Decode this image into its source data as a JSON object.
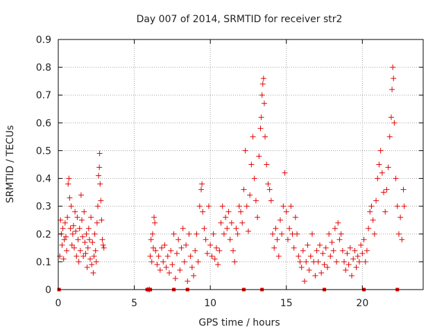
{
  "chart_data": {
    "type": "scatter",
    "title": "Day 007 of 2014, SRMTID for receiver str2",
    "xlabel": "GPS time / hours",
    "ylabel": "SRMTID / TECUs",
    "xlim": [
      0,
      24
    ],
    "ylim": [
      0,
      0.9
    ],
    "xticks": [
      0,
      5,
      10,
      15,
      20
    ],
    "xtick_labels": [
      "0",
      "5",
      "10",
      "15",
      "20"
    ],
    "yticks": [
      0,
      0.1,
      0.2,
      0.3,
      0.4,
      0.5,
      0.6,
      0.7,
      0.8,
      0.9
    ],
    "ytick_labels": [
      "0",
      "0.1",
      "0.2",
      "0.3",
      "0.4",
      "0.5",
      "0.6",
      "0.7",
      "0.8",
      "0.9"
    ],
    "grid": true,
    "marker": "+",
    "color": "#e00000",
    "series": [
      {
        "name": "SRMTID",
        "points": [
          [
            0.1,
            0.12
          ],
          [
            0.15,
            0.25
          ],
          [
            0.2,
            0.2
          ],
          [
            0.25,
            0.16
          ],
          [
            0.3,
            0.22
          ],
          [
            0.35,
            0.11
          ],
          [
            0.4,
            0.18
          ],
          [
            0.45,
            0.24
          ],
          [
            0.5,
            0.19
          ],
          [
            0.55,
            0.14
          ],
          [
            0.6,
            0.26
          ],
          [
            0.65,
            0.38
          ],
          [
            0.7,
            0.4
          ],
          [
            0.75,
            0.33
          ],
          [
            0.8,
            0.22
          ],
          [
            0.85,
            0.3
          ],
          [
            0.9,
            0.16
          ],
          [
            0.95,
            0.2
          ],
          [
            1.0,
            0.23
          ],
          [
            1.05,
            0.15
          ],
          [
            1.1,
            0.28
          ],
          [
            1.15,
            0.21
          ],
          [
            1.2,
            0.12
          ],
          [
            1.25,
            0.26
          ],
          [
            1.3,
            0.18
          ],
          [
            1.35,
            0.1
          ],
          [
            1.4,
            0.22
          ],
          [
            1.45,
            0.14
          ],
          [
            1.5,
            0.34
          ],
          [
            1.55,
            0.25
          ],
          [
            1.6,
            0.19
          ],
          [
            1.65,
            0.12
          ],
          [
            1.7,
            0.28
          ],
          [
            1.75,
            0.17
          ],
          [
            1.8,
            0.13
          ],
          [
            1.85,
            0.2
          ],
          [
            1.9,
            0.08
          ],
          [
            1.95,
            0.15
          ],
          [
            2.0,
            0.22
          ],
          [
            2.05,
            0.18
          ],
          [
            2.1,
            0.11
          ],
          [
            2.15,
            0.26
          ],
          [
            2.2,
            0.09
          ],
          [
            2.25,
            0.17
          ],
          [
            2.3,
            0.06
          ],
          [
            2.35,
            0.12
          ],
          [
            2.4,
            0.2
          ],
          [
            2.45,
            0.14
          ],
          [
            2.5,
            0.1
          ],
          [
            2.55,
            0.24
          ],
          [
            2.6,
            0.3
          ],
          [
            2.65,
            0.41
          ],
          [
            2.7,
            0.44
          ],
          [
            2.72,
            0.49
          ],
          [
            2.75,
            0.38
          ],
          [
            2.8,
            0.32
          ],
          [
            2.85,
            0.25
          ],
          [
            2.9,
            0.18
          ],
          [
            2.95,
            0.16
          ],
          [
            3.0,
            0.15
          ],
          [
            5.9,
            0.0
          ],
          [
            6.0,
            0.0
          ],
          [
            6.05,
            0.12
          ],
          [
            6.1,
            0.18
          ],
          [
            6.15,
            0.1
          ],
          [
            6.2,
            0.2
          ],
          [
            6.25,
            0.15
          ],
          [
            6.3,
            0.26
          ],
          [
            6.35,
            0.24
          ],
          [
            6.4,
            0.14
          ],
          [
            6.5,
            0.09
          ],
          [
            6.6,
            0.12
          ],
          [
            6.7,
            0.07
          ],
          [
            6.8,
            0.15
          ],
          [
            6.9,
            0.1
          ],
          [
            7.0,
            0.16
          ],
          [
            7.1,
            0.08
          ],
          [
            7.2,
            0.12
          ],
          [
            7.3,
            0.06
          ],
          [
            7.4,
            0.14
          ],
          [
            7.5,
            0.09
          ],
          [
            7.6,
            0.2
          ],
          [
            7.7,
            0.04
          ],
          [
            7.8,
            0.13
          ],
          [
            7.9,
            0.18
          ],
          [
            8.0,
            0.07
          ],
          [
            8.1,
            0.15
          ],
          [
            8.2,
            0.22
          ],
          [
            8.3,
            0.1
          ],
          [
            8.4,
            0.16
          ],
          [
            8.5,
            0.03
          ],
          [
            8.6,
            0.2
          ],
          [
            8.7,
            0.12
          ],
          [
            8.8,
            0.08
          ],
          [
            8.9,
            0.05
          ],
          [
            9.0,
            0.14
          ],
          [
            9.1,
            0.2
          ],
          [
            9.2,
            0.1
          ],
          [
            9.3,
            0.3
          ],
          [
            9.4,
            0.36
          ],
          [
            9.45,
            0.38
          ],
          [
            9.5,
            0.28
          ],
          [
            9.6,
            0.22
          ],
          [
            9.7,
            0.18
          ],
          [
            9.8,
            0.13
          ],
          [
            9.9,
            0.3
          ],
          [
            10.0,
            0.16
          ],
          [
            10.1,
            0.12
          ],
          [
            10.2,
            0.2
          ],
          [
            10.3,
            0.11
          ],
          [
            10.4,
            0.15
          ],
          [
            10.5,
            0.09
          ],
          [
            10.6,
            0.14
          ],
          [
            10.7,
            0.24
          ],
          [
            10.8,
            0.3
          ],
          [
            10.9,
            0.2
          ],
          [
            11.0,
            0.26
          ],
          [
            11.1,
            0.22
          ],
          [
            11.2,
            0.28
          ],
          [
            11.3,
            0.18
          ],
          [
            11.4,
            0.24
          ],
          [
            11.5,
            0.14
          ],
          [
            11.6,
            0.1
          ],
          [
            11.7,
            0.22
          ],
          [
            11.8,
            0.2
          ],
          [
            11.9,
            0.3
          ],
          [
            12.0,
            0.28
          ],
          [
            12.1,
            0.24
          ],
          [
            12.2,
            0.36
          ],
          [
            12.3,
            0.5
          ],
          [
            12.4,
            0.3
          ],
          [
            12.5,
            0.21
          ],
          [
            12.6,
            0.34
          ],
          [
            12.7,
            0.45
          ],
          [
            12.8,
            0.55
          ],
          [
            12.9,
            0.4
          ],
          [
            13.0,
            0.32
          ],
          [
            13.1,
            0.26
          ],
          [
            13.2,
            0.48
          ],
          [
            13.3,
            0.58
          ],
          [
            13.35,
            0.62
          ],
          [
            13.4,
            0.7
          ],
          [
            13.45,
            0.74
          ],
          [
            13.5,
            0.76
          ],
          [
            13.55,
            0.67
          ],
          [
            13.6,
            0.55
          ],
          [
            13.7,
            0.45
          ],
          [
            13.8,
            0.38
          ],
          [
            13.9,
            0.36
          ],
          [
            14.0,
            0.32
          ],
          [
            14.1,
            0.2
          ],
          [
            14.2,
            0.15
          ],
          [
            14.3,
            0.22
          ],
          [
            14.4,
            0.18
          ],
          [
            14.5,
            0.12
          ],
          [
            14.6,
            0.25
          ],
          [
            14.7,
            0.2
          ],
          [
            14.8,
            0.3
          ],
          [
            14.9,
            0.42
          ],
          [
            15.0,
            0.28
          ],
          [
            15.1,
            0.18
          ],
          [
            15.2,
            0.22
          ],
          [
            15.3,
            0.3
          ],
          [
            15.4,
            0.2
          ],
          [
            15.5,
            0.15
          ],
          [
            15.6,
            0.26
          ],
          [
            15.7,
            0.2
          ],
          [
            15.8,
            0.12
          ],
          [
            15.9,
            0.1
          ],
          [
            16.0,
            0.08
          ],
          [
            16.1,
            0.14
          ],
          [
            16.2,
            0.03
          ],
          [
            16.3,
            0.1
          ],
          [
            16.4,
            0.16
          ],
          [
            16.5,
            0.07
          ],
          [
            16.6,
            0.12
          ],
          [
            16.7,
            0.2
          ],
          [
            16.8,
            0.1
          ],
          [
            16.9,
            0.05
          ],
          [
            17.0,
            0.14
          ],
          [
            17.1,
            0.1
          ],
          [
            17.2,
            0.16
          ],
          [
            17.3,
            0.06
          ],
          [
            17.4,
            0.13
          ],
          [
            17.5,
            0.09
          ],
          [
            17.6,
            0.15
          ],
          [
            17.7,
            0.08
          ],
          [
            17.8,
            0.2
          ],
          [
            17.9,
            0.12
          ],
          [
            18.0,
            0.17
          ],
          [
            18.1,
            0.14
          ],
          [
            18.2,
            0.22
          ],
          [
            18.3,
            0.1
          ],
          [
            18.4,
            0.24
          ],
          [
            18.5,
            0.18
          ],
          [
            18.6,
            0.2
          ],
          [
            18.7,
            0.14
          ],
          [
            18.8,
            0.1
          ],
          [
            18.9,
            0.07
          ],
          [
            19.0,
            0.13
          ],
          [
            19.1,
            0.09
          ],
          [
            19.2,
            0.15
          ],
          [
            19.3,
            0.05
          ],
          [
            19.4,
            0.11
          ],
          [
            19.5,
            0.14
          ],
          [
            19.6,
            0.08
          ],
          [
            19.7,
            0.12
          ],
          [
            19.8,
            0.1
          ],
          [
            19.9,
            0.16
          ],
          [
            20.0,
            0.13
          ],
          [
            20.1,
            0.18
          ],
          [
            20.2,
            0.1
          ],
          [
            20.3,
            0.14
          ],
          [
            20.4,
            0.22
          ],
          [
            20.5,
            0.28
          ],
          [
            20.6,
            0.3
          ],
          [
            20.7,
            0.25
          ],
          [
            20.8,
            0.2
          ],
          [
            20.9,
            0.32
          ],
          [
            21.0,
            0.4
          ],
          [
            21.1,
            0.45
          ],
          [
            21.2,
            0.5
          ],
          [
            21.3,
            0.42
          ],
          [
            21.4,
            0.35
          ],
          [
            21.5,
            0.28
          ],
          [
            21.6,
            0.36
          ],
          [
            21.7,
            0.44
          ],
          [
            21.8,
            0.55
          ],
          [
            21.9,
            0.62
          ],
          [
            21.95,
            0.72
          ],
          [
            22.0,
            0.8
          ],
          [
            22.05,
            0.76
          ],
          [
            22.1,
            0.6
          ],
          [
            22.2,
            0.4
          ],
          [
            22.3,
            0.3
          ],
          [
            22.4,
            0.2
          ],
          [
            22.5,
            0.26
          ],
          [
            22.6,
            0.18
          ],
          [
            22.7,
            0.36
          ],
          [
            22.75,
            0.3
          ]
        ]
      }
    ],
    "zero_markers": [
      0.05,
      5.85,
      6.05,
      7.6,
      8.5,
      12.2,
      13.4,
      17.5,
      20.1,
      22.3
    ]
  }
}
